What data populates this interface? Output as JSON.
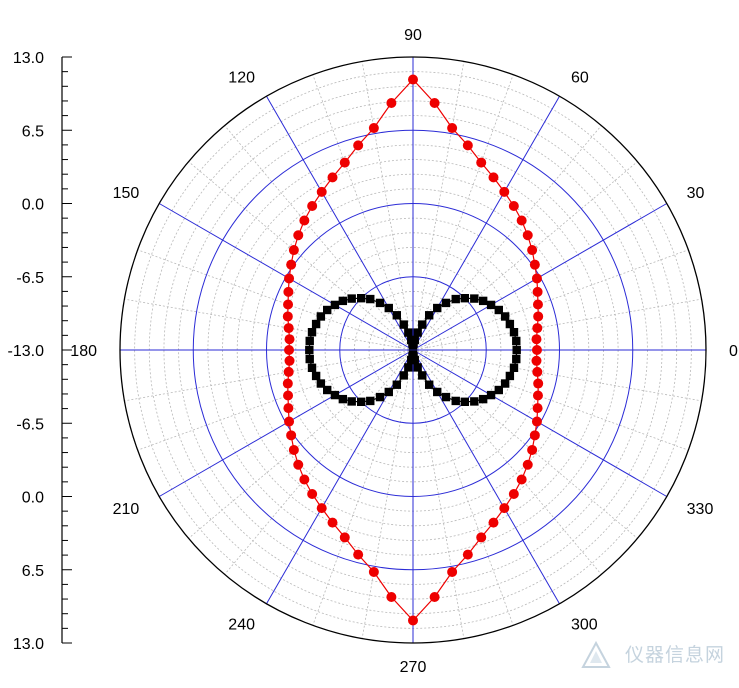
{
  "chart_data": {
    "type": "polar-scatter",
    "title": "",
    "radial_axis": {
      "range": [
        -13.0,
        13.0
      ],
      "tick_labels": [
        "13.0",
        "6.5",
        "0.0",
        "-6.5",
        "-13.0",
        "-6.5",
        "0.0",
        "6.5",
        "13.0"
      ]
    },
    "angular_axis": {
      "unit": "degrees",
      "tick_labels": [
        "0",
        "30",
        "60",
        "90",
        "120",
        "150",
        "180",
        "210",
        "240",
        "270",
        "300",
        "330"
      ]
    },
    "grid": true,
    "series": [
      {
        "color": "#ee0000",
        "marker": "circle",
        "line": true,
        "x": [
          0,
          5,
          10,
          15,
          20,
          25,
          30,
          35,
          40,
          45,
          50,
          55,
          60,
          65,
          70,
          75,
          80,
          85,
          90,
          95,
          100,
          105,
          110,
          115,
          120,
          125,
          130,
          135,
          140,
          145,
          150,
          155,
          160,
          165,
          170,
          175,
          180,
          185,
          190,
          195,
          200,
          205,
          210,
          215,
          220,
          225,
          230,
          235,
          240,
          245,
          250,
          255,
          260,
          265,
          270,
          275,
          280,
          285,
          290,
          295,
          300,
          305,
          310,
          315,
          320,
          325,
          330,
          335,
          340,
          345,
          350,
          355
        ],
        "y": [
          -2.0,
          -2.0,
          -1.8,
          -1.5,
          -1.2,
          -0.8,
          -0.3,
          0.2,
          0.8,
          1.4,
          2.0,
          2.6,
          3.2,
          3.9,
          4.7,
          5.8,
          7.0,
          9.0,
          11.0,
          9.0,
          7.0,
          5.8,
          4.7,
          3.9,
          3.2,
          2.6,
          2.0,
          1.4,
          0.8,
          0.2,
          -0.3,
          -0.8,
          -1.2,
          -1.5,
          -1.8,
          -2.0,
          -2.0,
          -2.0,
          -1.8,
          -1.5,
          -1.2,
          -0.8,
          -0.3,
          0.2,
          0.8,
          1.4,
          2.0,
          2.6,
          3.2,
          3.9,
          4.7,
          5.8,
          7.0,
          9.0,
          11.0,
          9.0,
          7.0,
          5.8,
          4.7,
          3.9,
          3.2,
          2.6,
          2.0,
          1.4,
          0.8,
          0.2,
          -0.3,
          -0.8,
          -1.2,
          -1.5,
          -1.8,
          -2.0
        ]
      },
      {
        "color": "#000000",
        "marker": "square",
        "line": true,
        "x": [
          0,
          5,
          10,
          15,
          20,
          25,
          30,
          35,
          40,
          45,
          50,
          55,
          60,
          65,
          70,
          75,
          80,
          85,
          90,
          95,
          100,
          105,
          110,
          115,
          120,
          125,
          130,
          135,
          140,
          145,
          150,
          155,
          160,
          165,
          170,
          175,
          180,
          185,
          190,
          195,
          200,
          205,
          210,
          215,
          220,
          225,
          230,
          235,
          240,
          245,
          250,
          255,
          260,
          265,
          270,
          275,
          280,
          285,
          290,
          295,
          300,
          305,
          310,
          315,
          320,
          325,
          330,
          335,
          340,
          345,
          350,
          355
        ],
        "y": [
          -3.8,
          -3.8,
          -3.9,
          -4.1,
          -4.3,
          -4.6,
          -5.0,
          -5.4,
          -5.9,
          -6.5,
          -7.1,
          -7.9,
          -8.7,
          -9.6,
          -10.6,
          -11.4,
          -12.1,
          -12.4,
          -12.6,
          -12.4,
          -12.1,
          -11.4,
          -10.6,
          -9.6,
          -8.7,
          -7.9,
          -7.1,
          -6.5,
          -5.9,
          -5.4,
          -5.0,
          -4.6,
          -4.3,
          -4.1,
          -3.9,
          -3.8,
          -3.8,
          -3.8,
          -3.9,
          -4.1,
          -4.3,
          -4.6,
          -5.0,
          -5.4,
          -5.9,
          -6.5,
          -7.1,
          -7.9,
          -8.7,
          -9.6,
          -10.6,
          -11.4,
          -12.1,
          -12.4,
          -12.6,
          -12.4,
          -12.1,
          -11.4,
          -10.6,
          -9.6,
          -8.7,
          -7.9,
          -7.1,
          -6.5,
          -5.9,
          -5.4,
          -5.0,
          -4.6,
          -4.3,
          -4.1,
          -3.9,
          -3.8
        ]
      }
    ]
  },
  "watermark": {
    "text": "仪器信息网"
  },
  "colors": {
    "grid_major": "#2b2bd6",
    "grid_minor": "#b8b8b8",
    "outline": "#000000"
  }
}
